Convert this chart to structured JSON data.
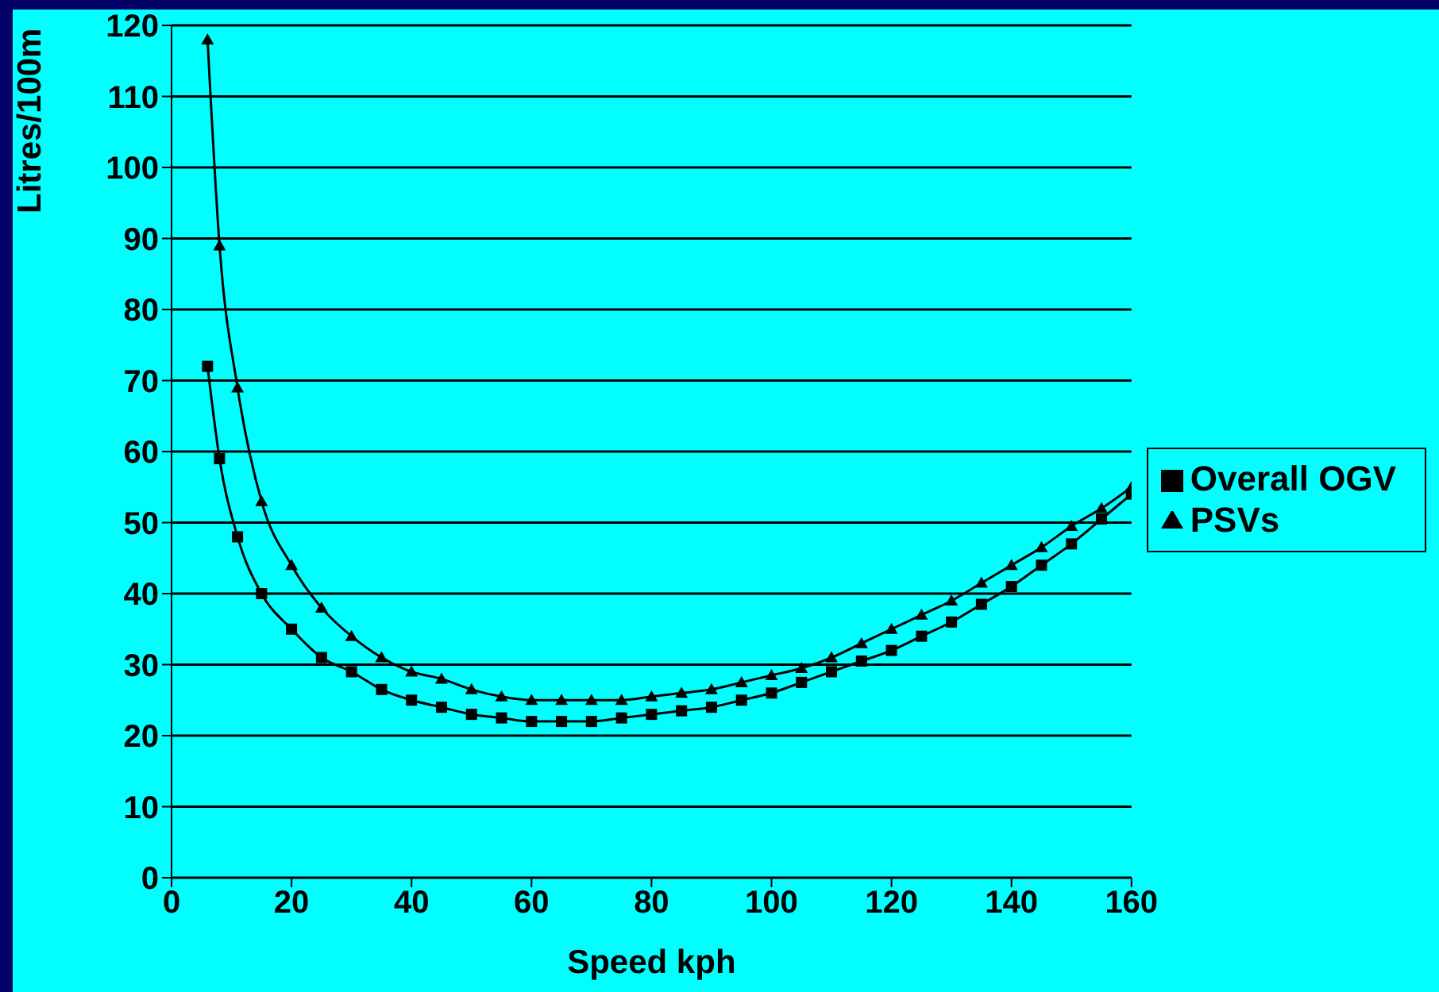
{
  "chart_data": {
    "type": "line",
    "xlabel": "Speed kph",
    "ylabel": "Litres/100m",
    "x": [
      6,
      8,
      11,
      15,
      20,
      25,
      30,
      35,
      40,
      45,
      50,
      55,
      60,
      65,
      70,
      75,
      80,
      85,
      90,
      95,
      100,
      105,
      110,
      115,
      120,
      125,
      130,
      135,
      140,
      145,
      150,
      155,
      160
    ],
    "series": [
      {
        "name": "Overall OGV",
        "color": "#000000",
        "marker": "square",
        "values": [
          72,
          59,
          48,
          40,
          35,
          31,
          29,
          26.5,
          25,
          24,
          23,
          22.5,
          22,
          22,
          22,
          22.5,
          23,
          23.5,
          24,
          25,
          26,
          27.5,
          29,
          30.5,
          32,
          34,
          36,
          38.5,
          41,
          44,
          47,
          50.5,
          54
        ]
      },
      {
        "name": "PSVs",
        "color": "#000000",
        "marker": "triangle",
        "values": [
          118,
          89,
          69,
          53,
          44,
          38,
          34,
          31,
          29,
          28,
          26.5,
          25.5,
          25,
          25,
          25,
          25,
          25.5,
          26,
          26.5,
          27.5,
          28.5,
          29.5,
          31,
          33,
          35,
          37,
          39,
          41.5,
          44,
          46.5,
          49.5,
          52,
          55
        ]
      }
    ],
    "xlim": [
      0,
      160
    ],
    "xticks": [
      0,
      20,
      40,
      60,
      80,
      100,
      120,
      140,
      160
    ],
    "ylim": [
      0,
      120
    ],
    "yticks": [
      0,
      10,
      20,
      30,
      40,
      50,
      60,
      70,
      80,
      90,
      100,
      110,
      120
    ],
    "grid": "y",
    "legend": "right",
    "line_style": "solid"
  }
}
